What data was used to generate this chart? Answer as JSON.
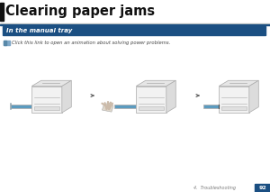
{
  "title": "Clearing paper jams",
  "section_header": "In the manual tray",
  "link_text": "Click this link to open an animation about solving power problems.",
  "footer_chapter": "4.  Troubleshooting",
  "footer_page": "92",
  "bg_color": "#ffffff",
  "title_bar_color": "#111111",
  "section_header_bg": "#1b4f82",
  "section_header_text_color": "#ffffff",
  "sep_line1_color": "#d0cfc9",
  "sep_line2_color": "#1b4f82",
  "footer_bg": "#1b4f82",
  "icon_color": "#4a7fb5",
  "arrow_color": "#666666",
  "printer_face_color": "#f2f2f2",
  "printer_top_color": "#e6e6e6",
  "printer_right_color": "#dcdcdc",
  "printer_edge_color": "#b0b0b0",
  "tray_color": "#5b9bbf",
  "tray_dark": "#3a7a9c"
}
